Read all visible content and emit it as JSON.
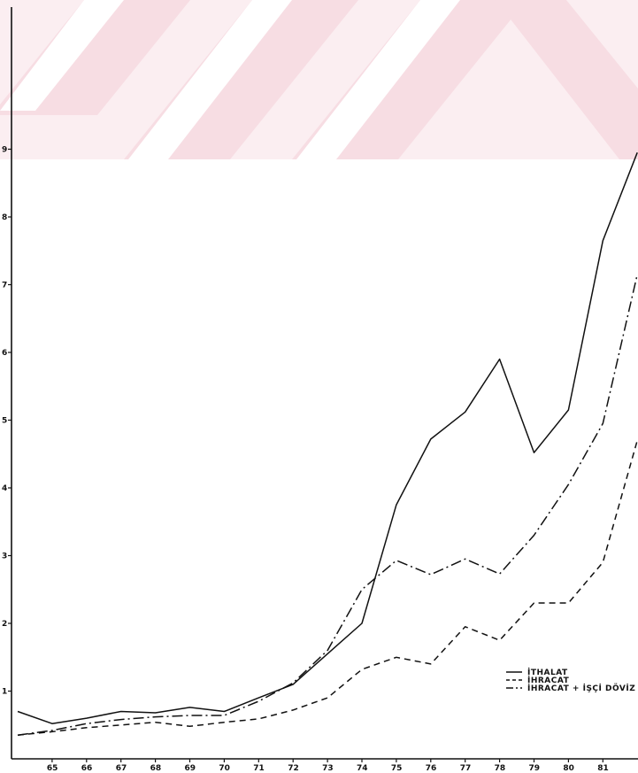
{
  "colors": {
    "ink": "#111111",
    "watermark": "#f7dde3",
    "background": "#ffffff"
  },
  "chart_data": {
    "type": "line",
    "title": "",
    "xlabel": "",
    "ylabel": "",
    "x": [
      "64",
      "65",
      "66",
      "67",
      "68",
      "69",
      "70",
      "71",
      "72",
      "73",
      "74",
      "75",
      "76",
      "77",
      "78",
      "79",
      "80",
      "81",
      "82"
    ],
    "x_tick_labels": [
      "65",
      "66",
      "67",
      "68",
      "69",
      "70",
      "71",
      "72",
      "73",
      "74",
      "75",
      "76",
      "77",
      "78",
      "79",
      "80",
      "81"
    ],
    "y_tick_labels": [
      "1",
      "2",
      "3",
      "4",
      "5",
      "6",
      "7",
      "8",
      "9"
    ],
    "ylim": [
      0,
      10
    ],
    "grid": false,
    "legend_placement": "bottom-right",
    "series": [
      {
        "name": "İTHALAT",
        "style": "solid",
        "values": [
          0.7,
          0.52,
          0.6,
          0.7,
          0.68,
          0.76,
          0.7,
          0.9,
          1.1,
          1.55,
          2.0,
          3.75,
          4.72,
          5.12,
          5.9,
          4.52,
          5.15,
          7.65,
          8.95
        ]
      },
      {
        "name": "İHRACAT",
        "style": "dashed",
        "values": [
          0.35,
          0.4,
          0.46,
          0.5,
          0.54,
          0.48,
          0.54,
          0.59,
          0.72,
          0.9,
          1.32,
          1.5,
          1.4,
          1.95,
          1.75,
          2.3,
          2.3,
          2.9,
          4.7
        ]
      },
      {
        "name": "İHRACAT + İŞÇİ DÖVİZ",
        "style": "dash-dot",
        "values": [
          0.35,
          0.42,
          0.52,
          0.58,
          0.62,
          0.64,
          0.64,
          0.85,
          1.12,
          1.6,
          2.5,
          2.93,
          2.72,
          2.95,
          2.73,
          3.3,
          4.05,
          4.95,
          7.15
        ]
      }
    ],
    "legend": [
      {
        "label": "İTHALAT",
        "style": "solid"
      },
      {
        "label": "İHRACAT",
        "style": "dashed"
      },
      {
        "label": "İHRACAT + İŞÇİ DÖVİZ",
        "style": "dash-dot"
      }
    ]
  }
}
